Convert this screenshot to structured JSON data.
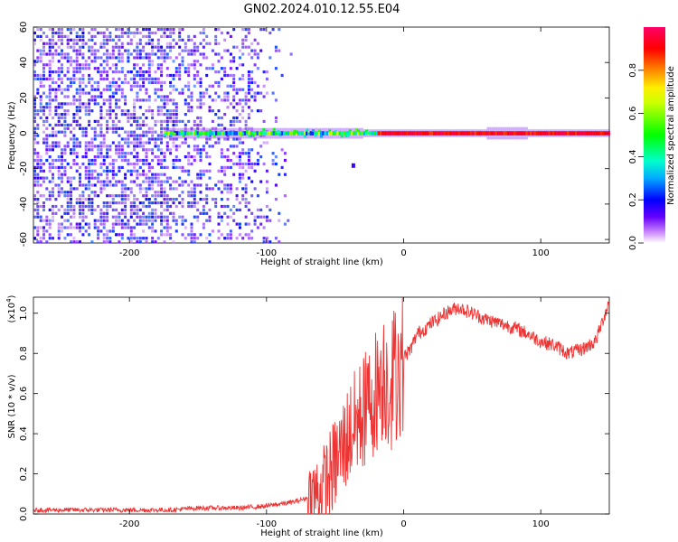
{
  "title": "GN02.2024.010.12.55.E04",
  "chart_data": [
    {
      "type": "heatmap",
      "xlabel": "Height of straight line (km)",
      "ylabel": "Frequency (Hz)",
      "xlim": [
        -270,
        150
      ],
      "ylim": [
        -62,
        60
      ],
      "xticks": [
        -200,
        -100,
        0,
        100
      ],
      "xtick_labels": [
        "-200",
        "-100",
        "0",
        "100"
      ],
      "yticks": [
        -60,
        -40,
        -20,
        0,
        20,
        40,
        60
      ],
      "ytick_labels": [
        "-60",
        "-40",
        "-20",
        "0",
        "20",
        "40",
        "60"
      ],
      "colorbar": {
        "label": "Normalized spectral amplitude",
        "range": [
          0,
          1
        ],
        "ticks": [
          0.0,
          0.2,
          0.4,
          0.6,
          0.8
        ],
        "tick_labels": [
          "0.0",
          "0.2",
          "0.4",
          "0.6",
          "0.8"
        ],
        "colormap": "white-purple-blue-cyan-green-yellow-red-magenta"
      },
      "features": [
        {
          "name": "broadband noise",
          "x_range": [
            -270,
            -95
          ],
          "y_range": [
            -62,
            60
          ],
          "amplitude": [
            0.05,
            0.25
          ]
        },
        {
          "name": "0 Hz signal line",
          "x_range": [
            -175,
            150
          ],
          "y_center": 0,
          "amplitude": [
            0.4,
            1.0
          ]
        }
      ]
    },
    {
      "type": "line",
      "xlabel": "Height of straight line (km)",
      "ylabel": "SNR (10 * v/v)",
      "y_scale_label": "(x10",
      "y_scale_exp": "4",
      "y_scale_close": ")",
      "xlim": [
        -270,
        150
      ],
      "ylim": [
        0,
        1.08
      ],
      "xticks": [
        -200,
        -100,
        0,
        100
      ],
      "xtick_labels": [
        "-200",
        "-100",
        "0",
        "100"
      ],
      "yticks": [
        0,
        0.2,
        0.4,
        0.6,
        0.8,
        1.0
      ],
      "ytick_labels": [
        "0.0",
        "0.2",
        "0.4",
        "0.6",
        "0.8",
        "1.0"
      ],
      "color": "#ee3333",
      "series": [
        {
          "x": [
            -270,
            -240,
            -200,
            -170,
            -150,
            -120,
            -100,
            -90,
            -80,
            -70,
            -60,
            -55,
            -50,
            -45,
            -40,
            -35,
            -30,
            -25,
            -20,
            -15,
            -10,
            -5,
            0,
            5,
            10,
            15,
            20,
            25,
            30,
            40,
            50,
            60,
            70,
            80,
            90,
            100,
            110,
            120,
            130,
            140,
            150
          ],
          "values": [
            0.02,
            0.02,
            0.02,
            0.02,
            0.03,
            0.03,
            0.04,
            0.05,
            0.06,
            0.08,
            0.12,
            0.18,
            0.25,
            0.32,
            0.4,
            0.45,
            0.5,
            0.55,
            0.62,
            0.7,
            0.65,
            0.72,
            0.78,
            0.82,
            0.9,
            0.92,
            0.95,
            0.97,
            1.0,
            1.03,
            1.0,
            0.97,
            0.95,
            0.93,
            0.9,
            0.86,
            0.84,
            0.8,
            0.82,
            0.86,
            1.06
          ]
        }
      ]
    }
  ]
}
